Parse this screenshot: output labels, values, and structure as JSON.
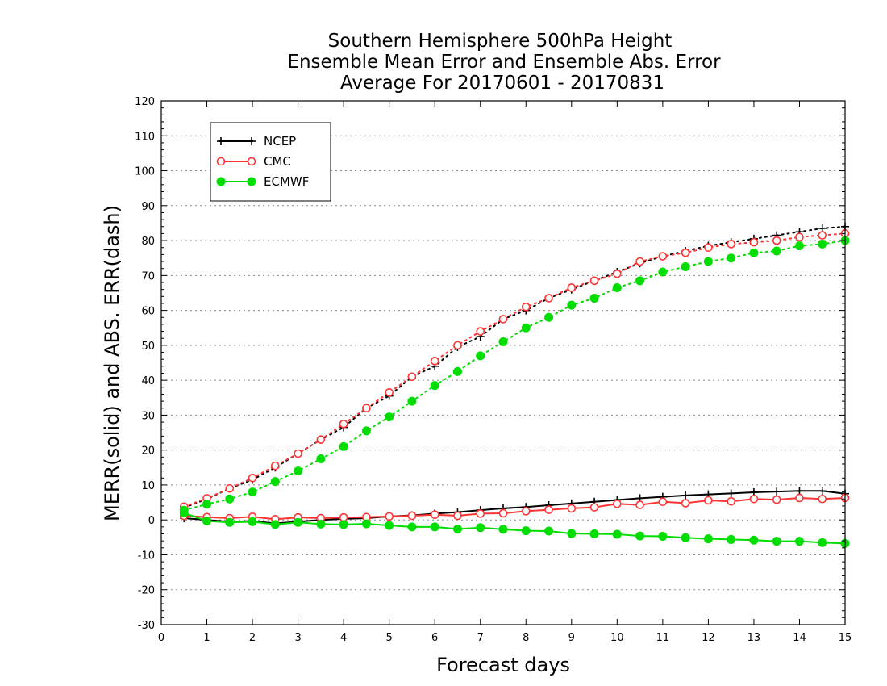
{
  "chart_data": {
    "type": "line",
    "title_lines": [
      "Southern Hemisphere 500hPa Height",
      "Ensemble Mean Error and Ensemble Abs. Error",
      "Average For 20170601 - 20170831"
    ],
    "xlabel": "Forecast days",
    "ylabel": "MERR(solid) and ABS. ERR(dash)",
    "xlim": [
      0,
      15
    ],
    "ylim": [
      -30,
      120
    ],
    "x_ticks": [
      "0",
      "1",
      "2",
      "3",
      "4",
      "5",
      "6",
      "7",
      "8",
      "9",
      "10",
      "11",
      "12",
      "13",
      "14",
      "15"
    ],
    "y_ticks": [
      "-30",
      "-20",
      "-10",
      "0",
      "10",
      "20",
      "30",
      "40",
      "50",
      "60",
      "70",
      "80",
      "90",
      "100",
      "110",
      "120"
    ],
    "grid": "horizontal dotted",
    "legend_position": "top-left",
    "x": [
      0.5,
      1,
      1.5,
      2,
      2.5,
      3,
      3.5,
      4,
      4.5,
      5,
      5.5,
      6,
      6.5,
      7,
      7.5,
      8,
      8.5,
      9,
      9.5,
      10,
      10.5,
      11,
      11.5,
      12,
      12.5,
      13,
      13.5,
      14,
      14.5,
      15
    ],
    "series": [
      {
        "name": "NCEP",
        "color": "#000000",
        "marker": "plus",
        "merr": [
          0.5,
          0,
          -0.5,
          -0.3,
          -1,
          -0.5,
          0,
          0.3,
          0.5,
          1,
          1.3,
          1.8,
          2.2,
          2.8,
          3.3,
          3.7,
          4.2,
          4.7,
          5.2,
          5.7,
          6.2,
          6.6,
          7,
          7.3,
          7.6,
          7.9,
          8.1,
          8.3,
          8.3,
          7.5
        ],
        "abs_err": [
          3.5,
          6,
          9,
          11.5,
          15,
          19,
          23,
          26.5,
          32,
          35.5,
          41,
          44,
          49.5,
          52.5,
          57.5,
          60,
          63.5,
          66,
          68.5,
          71,
          73.5,
          75.5,
          77,
          78.5,
          79.5,
          80.5,
          81.5,
          82.5,
          83.5,
          84
        ]
      },
      {
        "name": "CMC",
        "color": "#ff3333",
        "marker": "open-circle",
        "merr": [
          1.2,
          0.8,
          0.5,
          0.9,
          0.2,
          0.7,
          0.5,
          0.7,
          0.8,
          1,
          1.2,
          1.5,
          1.2,
          1.8,
          1.9,
          2.5,
          2.9,
          3.3,
          3.6,
          4.6,
          4.3,
          5.2,
          4.8,
          5.6,
          5.3,
          6,
          5.8,
          6.3,
          6,
          6.3
        ],
        "abs_err": [
          3.8,
          6.2,
          9,
          12,
          15.5,
          19,
          23,
          27.5,
          32,
          36.5,
          41,
          45.5,
          50,
          54,
          57.5,
          61,
          63.5,
          66.5,
          68.5,
          70.5,
          74,
          75.5,
          76.5,
          78,
          79,
          79.5,
          80,
          81,
          81.5,
          82
        ]
      },
      {
        "name": "ECMWF",
        "color": "#00dd00",
        "marker": "filled-circle",
        "merr": [
          2,
          -0.3,
          -0.7,
          -0.5,
          -1.3,
          -0.7,
          -1.2,
          -1.3,
          -1.1,
          -1.6,
          -2,
          -2,
          -2.6,
          -2.2,
          -2.7,
          -3.1,
          -3.2,
          -3.9,
          -4,
          -4.1,
          -4.6,
          -4.7,
          -5.1,
          -5.4,
          -5.6,
          -5.8,
          -6.1,
          -6.1,
          -6.5,
          -6.7
        ],
        "abs_err": [
          2.8,
          4.5,
          6,
          8,
          11,
          14,
          17.5,
          21,
          25.5,
          29.5,
          34,
          38.5,
          42.5,
          47,
          51,
          55,
          58,
          61.5,
          63.5,
          66.5,
          68.5,
          71,
          72.5,
          74,
          75,
          76.5,
          77,
          78.5,
          79,
          80
        ]
      }
    ]
  }
}
